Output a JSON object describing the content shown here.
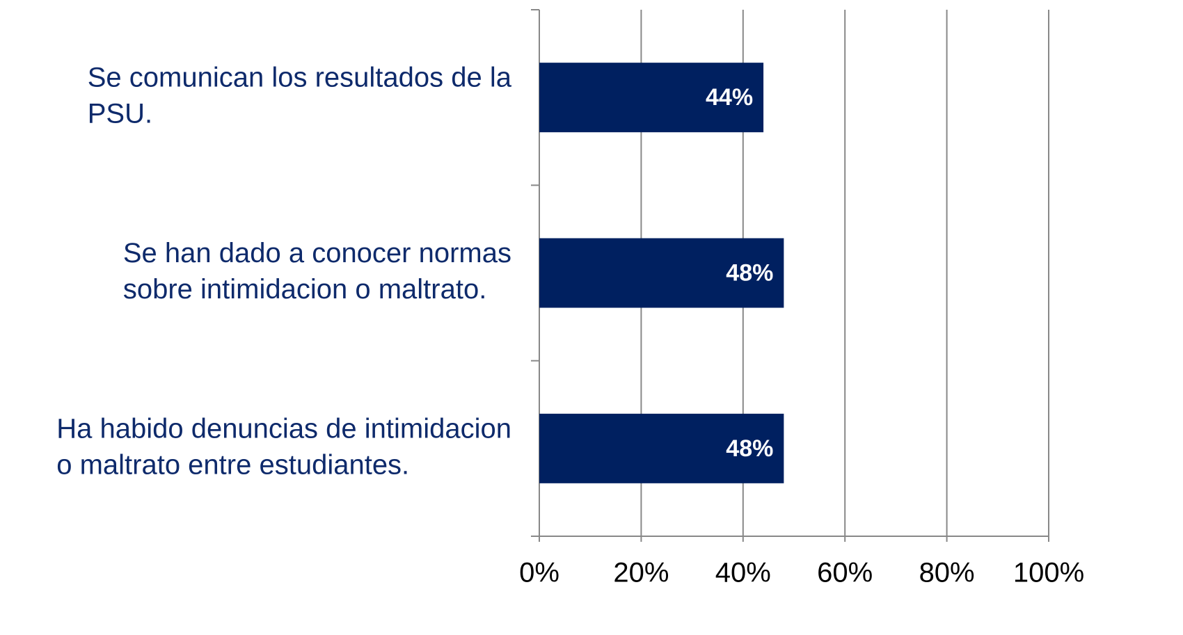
{
  "chart_data": {
    "type": "barh",
    "categories": [
      [
        "Se comunican los resultados de la",
        "PSU."
      ],
      [
        "Se han dado a conocer normas",
        "sobre intimidacion o maltrato."
      ],
      [
        "Ha habido denuncias de intimidacion",
        "o maltrato entre estudiantes."
      ]
    ],
    "values": [
      44,
      48,
      48
    ],
    "value_labels": [
      "44%",
      "48%",
      "48%"
    ],
    "color": "#002060",
    "xlim": [
      0,
      100
    ],
    "xticks": [
      {
        "value": 0,
        "label": "0%"
      },
      {
        "value": 20,
        "label": "20%"
      },
      {
        "value": 40,
        "label": "40%"
      },
      {
        "value": 60,
        "label": "60%"
      },
      {
        "value": 80,
        "label": "80%"
      },
      {
        "value": 100,
        "label": "100%"
      }
    ],
    "grid": true
  }
}
